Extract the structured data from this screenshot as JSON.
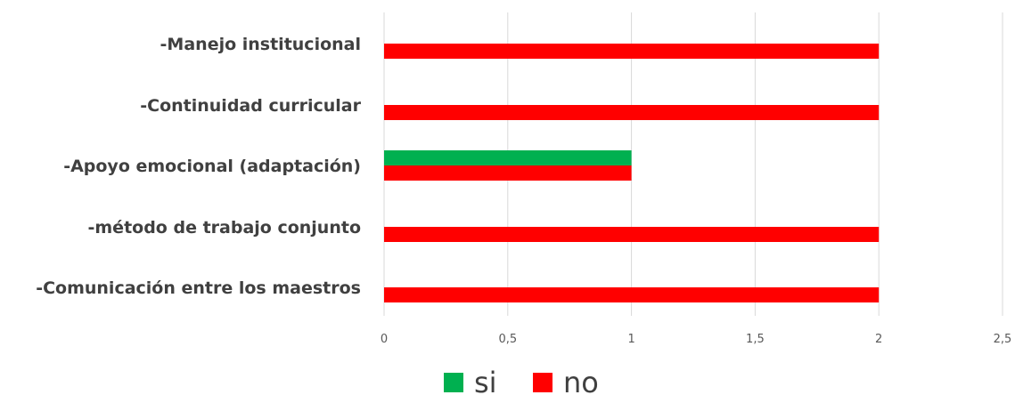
{
  "chart_data": {
    "type": "bar",
    "orientation": "horizontal",
    "categories": [
      "-Manejo institucional",
      "-Continuidad curricular",
      "-Apoyo emocional (adaptación)",
      "-método  de trabajo conjunto",
      "-Comunicación entre los maestros"
    ],
    "series": [
      {
        "name": "si",
        "color": "#00b050",
        "values": [
          0,
          0,
          1,
          0,
          0
        ]
      },
      {
        "name": "no",
        "color": "#ff0000",
        "values": [
          2,
          2,
          1,
          2,
          2
        ]
      }
    ],
    "xlim": [
      0,
      2.5
    ],
    "xticks": [
      0,
      0.5,
      1,
      1.5,
      2,
      2.5
    ],
    "xtick_labels": [
      "0",
      "0,5",
      "1",
      "1,5",
      "2",
      "2,5"
    ],
    "grid": "vertical",
    "legend_position": "bottom"
  }
}
